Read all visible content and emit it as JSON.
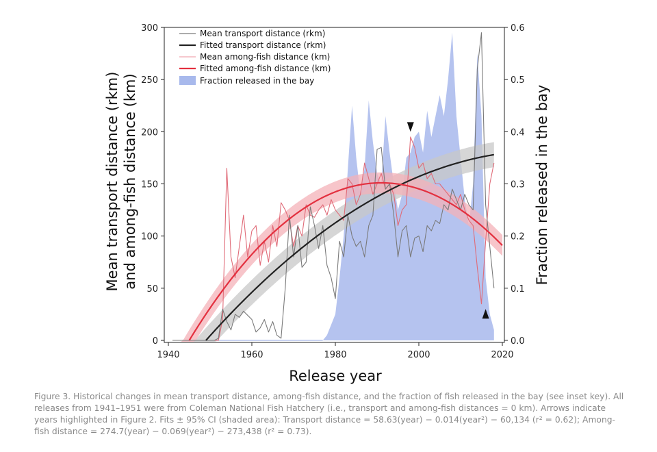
{
  "chart_data": {
    "type": "line",
    "xlabel": "Release year",
    "ylabel_left_line1": "Mean transport distance (rkm)",
    "ylabel_left_line2": "and among-fish distance (km)",
    "ylabel_right": "Fraction released in the bay",
    "xlim": [
      1940,
      2020
    ],
    "ylim_left": [
      0,
      300
    ],
    "ylim_right": [
      0,
      0.6
    ],
    "x_ticks": [
      "1940",
      "1960",
      "1980",
      "2000",
      "2020"
    ],
    "y_left_ticks": [
      "0",
      "50",
      "100",
      "150",
      "200",
      "250",
      "300"
    ],
    "y_right_ticks": [
      "0.0",
      "0.1",
      "0.2",
      "0.3",
      "0.4",
      "0.5",
      "0.6"
    ],
    "grid": false,
    "legend_position": "top-left",
    "legend": [
      "Mean transport distance (rkm)",
      "Fitted transport distance (rkm)",
      "Mean among-fish distance (km)",
      "Fitted among-fish distance (km)",
      "Fraction released in the bay"
    ],
    "colors": {
      "transport": "#7a7a7a",
      "transport_fit": "#222222",
      "transport_ci": "#c8c8c8",
      "among": "#e06b78",
      "among_fit": "#e3303f",
      "among_ci": "#f4b2b8",
      "bay": "#a8b9ec"
    },
    "series": [
      {
        "name": "Mean transport distance (rkm)",
        "x": [
          1941,
          1942,
          1943,
          1944,
          1945,
          1946,
          1947,
          1948,
          1949,
          1950,
          1951,
          1952,
          1953,
          1954,
          1955,
          1956,
          1957,
          1958,
          1959,
          1960,
          1961,
          1962,
          1963,
          1964,
          1965,
          1966,
          1967,
          1968,
          1969,
          1970,
          1971,
          1972,
          1973,
          1974,
          1975,
          1976,
          1977,
          1978,
          1979,
          1980,
          1981,
          1982,
          1983,
          1984,
          1985,
          1986,
          1987,
          1988,
          1989,
          1990,
          1991,
          1992,
          1993,
          1994,
          1995,
          1996,
          1997,
          1998,
          1999,
          2000,
          2001,
          2002,
          2003,
          2004,
          2005,
          2006,
          2007,
          2008,
          2009,
          2010,
          2011,
          2012,
          2013,
          2014,
          2015,
          2016,
          2017,
          2018
        ],
        "values": [
          0,
          0,
          0,
          0,
          0,
          0,
          0,
          0,
          0,
          0,
          0,
          2,
          30,
          18,
          10,
          25,
          22,
          28,
          24,
          20,
          8,
          12,
          20,
          8,
          18,
          5,
          2,
          50,
          120,
          80,
          110,
          70,
          75,
          128,
          110,
          88,
          110,
          72,
          60,
          40,
          95,
          80,
          120,
          100,
          90,
          95,
          80,
          110,
          120,
          183,
          185,
          145,
          150,
          120,
          80,
          105,
          110,
          80,
          98,
          100,
          85,
          110,
          105,
          115,
          112,
          130,
          125,
          145,
          135,
          125,
          140,
          130,
          125,
          260,
          295,
          130,
          90,
          50
        ]
      },
      {
        "name": "Mean among-fish distance (km)",
        "x": [
          1941,
          1942,
          1943,
          1944,
          1945,
          1946,
          1947,
          1948,
          1949,
          1950,
          1951,
          1952,
          1953,
          1954,
          1955,
          1956,
          1957,
          1958,
          1959,
          1960,
          1961,
          1962,
          1963,
          1964,
          1965,
          1966,
          1967,
          1968,
          1969,
          1970,
          1971,
          1972,
          1973,
          1974,
          1975,
          1976,
          1977,
          1978,
          1979,
          1980,
          1981,
          1982,
          1983,
          1984,
          1985,
          1986,
          1987,
          1988,
          1989,
          1990,
          1991,
          1992,
          1993,
          1994,
          1995,
          1996,
          1997,
          1998,
          1999,
          2000,
          2001,
          2002,
          2003,
          2004,
          2005,
          2006,
          2007,
          2008,
          2009,
          2010,
          2011,
          2012,
          2013,
          2014,
          2015,
          2016,
          2017,
          2018
        ],
        "values": [
          0,
          0,
          0,
          0,
          0,
          0,
          0,
          0,
          0,
          0,
          0,
          0,
          20,
          165,
          80,
          60,
          90,
          120,
          80,
          105,
          110,
          72,
          95,
          75,
          110,
          90,
          132,
          125,
          115,
          90,
          110,
          100,
          130,
          120,
          118,
          125,
          130,
          120,
          135,
          125,
          120,
          115,
          155,
          150,
          130,
          140,
          170,
          155,
          140,
          150,
          160,
          145,
          150,
          140,
          110,
          125,
          130,
          195,
          185,
          165,
          170,
          155,
          160,
          150,
          150,
          145,
          140,
          135,
          130,
          140,
          125,
          115,
          110,
          70,
          35,
          95,
          150,
          170
        ]
      },
      {
        "name": "Fraction released in the bay",
        "x": [
          1977,
          1978,
          1979,
          1980,
          1981,
          1982,
          1983,
          1984,
          1985,
          1986,
          1987,
          1988,
          1989,
          1990,
          1991,
          1992,
          1993,
          1994,
          1995,
          1996,
          1997,
          1998,
          1999,
          2000,
          2001,
          2002,
          2003,
          2004,
          2005,
          2006,
          2007,
          2008,
          2009,
          2010,
          2011,
          2012,
          2013,
          2014,
          2015,
          2016,
          2017,
          2018
        ],
        "values": [
          0,
          0.01,
          0.03,
          0.05,
          0.12,
          0.2,
          0.33,
          0.45,
          0.35,
          0.28,
          0.33,
          0.46,
          0.38,
          0.32,
          0.3,
          0.43,
          0.36,
          0.3,
          0.25,
          0.28,
          0.35,
          0.36,
          0.39,
          0.4,
          0.36,
          0.44,
          0.39,
          0.43,
          0.47,
          0.43,
          0.5,
          0.59,
          0.43,
          0.35,
          0.27,
          0.22,
          0.3,
          0.55,
          0.43,
          0.12,
          0.05,
          0.02
        ]
      }
    ],
    "fits": {
      "transport": {
        "name": "Fitted transport distance (rkm)",
        "x_range": [
          1949,
          2018
        ],
        "vertex_year": 2030,
        "vertex_value": 182,
        "ci_halfwidth": 12
      },
      "among": {
        "name": "Fitted among-fish distance (km)",
        "x_range": [
          1945,
          2020
        ],
        "vertex_year": 1991,
        "vertex_value": 151,
        "ci_halfwidth": 10
      }
    },
    "arrows": [
      {
        "year": 1998,
        "value": 200,
        "direction": "down"
      },
      {
        "year": 2016,
        "value": 30,
        "direction": "up"
      }
    ]
  },
  "caption": "Figure 3. Historical changes in mean transport distance, among-fish distance, and the fraction of fish released in the bay (see inset key). All releases from 1941–1951 were from Coleman National Fish Hatchery (i.e., transport and among-fish distances = 0 km). Arrows indicate years highlighted in Figure 2. Fits ± 95% CI (shaded area): Transport distance = 58.63(year) − 0.014(year²) − 60,134 (r² = 0.62); Among-fish distance = 274.7(year) − 0.069(year²) − 273,438 (r² = 0.73)."
}
